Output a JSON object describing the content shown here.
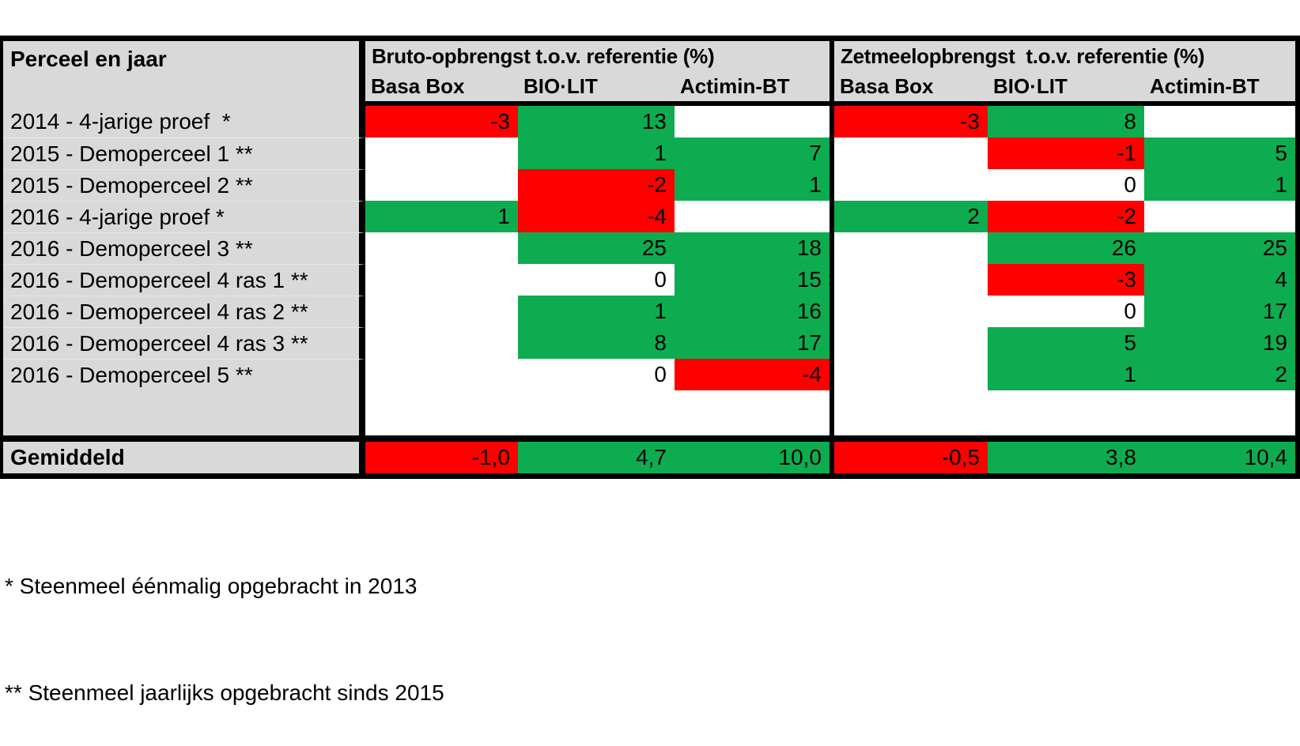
{
  "header": {
    "row_label": "Perceel en jaar",
    "groups": [
      {
        "title": "Bruto-opbrengst t.o.v. referentie (%)",
        "columns": [
          "Basa Box",
          "BIO·LIT",
          "Actimin-BT"
        ]
      },
      {
        "title": "Zetmeelopbrengst  t.o.v. referentie (%)",
        "columns": [
          "Basa Box",
          "BIO·LIT",
          "Actimin-BT"
        ]
      }
    ]
  },
  "rows": [
    {
      "label": "2014 - 4-jarige proef  *",
      "bruto": [
        "-3",
        "13",
        null
      ],
      "zetmeel": [
        "-3",
        "8",
        null
      ]
    },
    {
      "label": "2015 - Demoperceel 1 **",
      "bruto": [
        null,
        "1",
        "7"
      ],
      "zetmeel": [
        null,
        "-1",
        "5"
      ]
    },
    {
      "label": "2015 - Demoperceel 2 **",
      "bruto": [
        null,
        "-2",
        "1"
      ],
      "zetmeel": [
        null,
        "0",
        "1"
      ]
    },
    {
      "label": "2016 - 4-jarige proef *",
      "bruto": [
        "1",
        "-4",
        null
      ],
      "zetmeel": [
        "2",
        "-2",
        null
      ]
    },
    {
      "label": "2016 - Demoperceel 3 **",
      "bruto": [
        null,
        "25",
        "18"
      ],
      "zetmeel": [
        null,
        "26",
        "25"
      ]
    },
    {
      "label": "2016 - Demoperceel 4 ras 1 **",
      "bruto": [
        null,
        "0",
        "15"
      ],
      "zetmeel": [
        null,
        "-3",
        "4"
      ]
    },
    {
      "label": "2016 - Demoperceel 4 ras 2 **",
      "bruto": [
        null,
        "1",
        "16"
      ],
      "zetmeel": [
        null,
        "0",
        "17"
      ]
    },
    {
      "label": "2016 - Demoperceel 4 ras 3 **",
      "bruto": [
        null,
        "8",
        "17"
      ],
      "zetmeel": [
        null,
        "5",
        "19"
      ]
    },
    {
      "label": "2016 - Demoperceel 5 **",
      "bruto": [
        null,
        "0",
        "-4"
      ],
      "zetmeel": [
        null,
        "1",
        "2"
      ]
    }
  ],
  "summary": {
    "label": "Gemiddeld",
    "bruto": [
      "-1,0",
      "4,7",
      "10,0"
    ],
    "zetmeel": [
      "-0,5",
      "3,8",
      "10,4"
    ]
  },
  "footnotes": [
    "* Steenmeel éénmalig opgebracht in 2013",
    "** Steenmeel jaarlijks opgebracht sinds 2015"
  ],
  "colors": {
    "positive_bg": "#0EAC50",
    "negative_bg": "#FE0000",
    "header_bg": "#D9D9D9",
    "border": "#000000",
    "zero_bg": "#FFFFFF"
  }
}
